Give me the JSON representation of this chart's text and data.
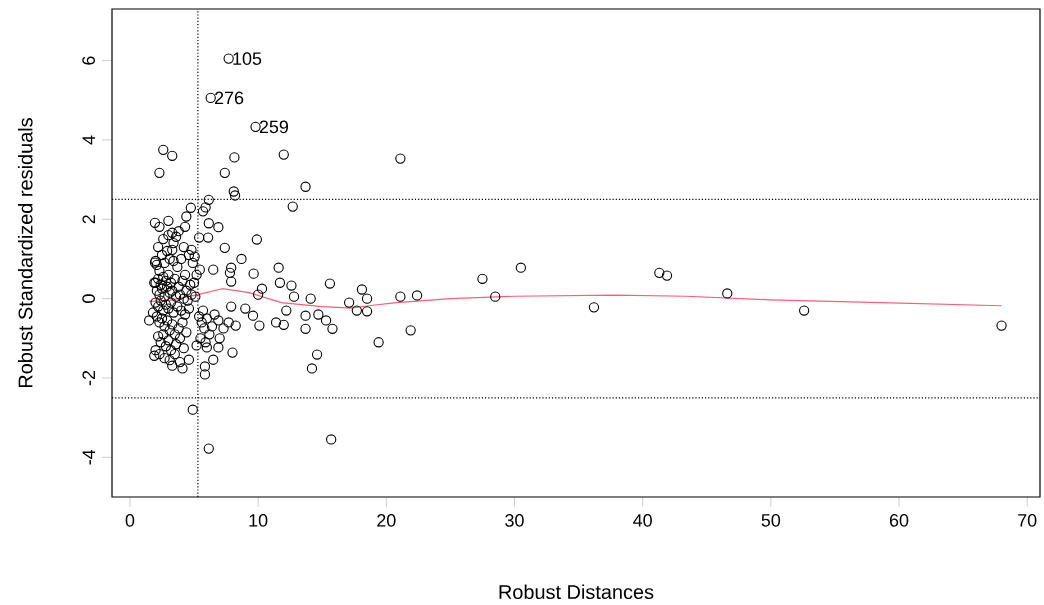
{
  "chart_data": {
    "type": "scatter",
    "xlabel": "Robust Distances",
    "ylabel": "Robust Standardized residuals",
    "xlim": [
      -1.4,
      71.0
    ],
    "ylim": [
      -5.0,
      7.3
    ],
    "xticks": [
      0,
      10,
      20,
      30,
      40,
      50,
      60,
      70
    ],
    "yticks": [
      -4,
      -2,
      0,
      2,
      4,
      6
    ],
    "grid": false,
    "legend": false,
    "series": [
      {
        "color": "#000000",
        "marker": "circle",
        "x": [
          7.7,
          6.3,
          9.8,
          2.6,
          3.3,
          2.3,
          8.15,
          7.4,
          12.0,
          13.7,
          8.1,
          8.2,
          12.7,
          21.1,
          4.75,
          6.15,
          5.9,
          5.7,
          9.9,
          6.15,
          6.9,
          7.4,
          8.7,
          9.65,
          11.6,
          11.7,
          12.6,
          12.8,
          14.1,
          15.6,
          10.3,
          10.0,
          7.9,
          7.8,
          7.9,
          7.9,
          9.0,
          9.6,
          10.1,
          11.4,
          12.0,
          12.2,
          13.7,
          13.7,
          14.7,
          15.3,
          15.8,
          14.6,
          14.2,
          17.1,
          17.7,
          18.1,
          18.5,
          18.5,
          19.4,
          15.7,
          4.9,
          6.15,
          21.1,
          21.9,
          22.4,
          27.5,
          28.5,
          30.5,
          36.2,
          41.3,
          41.9,
          46.6,
          52.6,
          68.0,
          1.5,
          3.3,
          4.1,
          4.6,
          1.9,
          5.85,
          5.85,
          6.5,
          6.9,
          8.0,
          6.0,
          5.2,
          7.7,
          8.25,
          1.95,
          2.3,
          3.0,
          3.3,
          3.6,
          4.3,
          4.4,
          5.4,
          6.1,
          1.95,
          1.9,
          3.3,
          5.05,
          4.8,
          5.45,
          6.5,
          2.0,
          2.1,
          2.3,
          2.5,
          2.7,
          2.9,
          3.1,
          3.4,
          3.7,
          4.0,
          4.3,
          4.6,
          4.9,
          5.2,
          2.2,
          2.4,
          2.6,
          2.8,
          3.0,
          3.2,
          3.5,
          3.8,
          4.1,
          4.4,
          4.7,
          5.0,
          2.1,
          2.3,
          2.5,
          2.7,
          2.9,
          3.1,
          3.3,
          3.6,
          3.9,
          4.2,
          4.5,
          4.8,
          5.1,
          2.0,
          2.2,
          2.4,
          2.6,
          2.8,
          3.0,
          3.2,
          3.4,
          3.7,
          4.0,
          4.3,
          4.6,
          2.1,
          2.3,
          2.5,
          2.7,
          2.9,
          3.1,
          3.3,
          3.5,
          3.8,
          4.1,
          4.4,
          2.2,
          2.4,
          2.6,
          2.8,
          3.0,
          3.2,
          3.6,
          3.9,
          4.2,
          2.0,
          2.3,
          2.7,
          3.1,
          3.5,
          3.9,
          1.8,
          2.0,
          2.2,
          2.6,
          3.0,
          3.4,
          3.8,
          4.2,
          5.4,
          5.6,
          5.8,
          6.0,
          6.2,
          5.5,
          5.9,
          6.4,
          6.6,
          5.7,
          6.9,
          7.3,
          7.0
        ],
        "values": [
          6.05,
          5.06,
          4.33,
          3.75,
          3.6,
          3.17,
          3.56,
          3.17,
          3.63,
          2.82,
          2.7,
          2.6,
          2.32,
          3.53,
          2.29,
          2.49,
          2.3,
          2.2,
          1.49,
          1.9,
          1.8,
          1.28,
          1.0,
          0.63,
          0.78,
          0.4,
          0.33,
          0.05,
          0.0,
          0.38,
          0.25,
          0.1,
          0.78,
          0.65,
          0.43,
          -0.2,
          -0.25,
          -0.43,
          -0.68,
          -0.6,
          -0.66,
          -0.3,
          -0.43,
          -0.76,
          -0.4,
          -0.55,
          -0.76,
          -1.41,
          -1.76,
          -0.1,
          -0.3,
          0.23,
          0.0,
          -0.32,
          -1.1,
          -3.55,
          -2.8,
          -3.78,
          0.05,
          -0.8,
          0.08,
          0.5,
          0.05,
          0.78,
          -0.22,
          0.65,
          0.58,
          0.13,
          -0.3,
          -0.68,
          -0.55,
          -1.69,
          -1.76,
          -1.54,
          -1.44,
          -1.91,
          -1.71,
          -1.54,
          -1.23,
          -1.36,
          -1.23,
          -1.18,
          -0.6,
          -0.68,
          1.91,
          1.81,
          1.96,
          1.66,
          1.56,
          1.81,
          2.07,
          1.54,
          1.54,
          0.91,
          0.4,
          1.23,
          1.06,
          1.23,
          0.73,
          0.73,
          0.95,
          0.85,
          0.7,
          1.1,
          0.9,
          1.2,
          1.0,
          0.95,
          0.8,
          1.0,
          0.6,
          1.1,
          0.9,
          0.6,
          0.5,
          0.35,
          0.55,
          0.45,
          0.6,
          0.4,
          0.5,
          0.3,
          0.45,
          0.2,
          0.35,
          0.4,
          0.2,
          0.1,
          0.25,
          0.05,
          0.3,
          0.15,
          0.2,
          0.05,
          0.1,
          0.0,
          -0.05,
          0.1,
          0.05,
          -0.1,
          -0.2,
          -0.05,
          -0.3,
          -0.15,
          -0.25,
          -0.1,
          -0.35,
          -0.2,
          -0.3,
          -0.4,
          -0.25,
          -0.45,
          -0.6,
          -0.5,
          -0.7,
          -0.55,
          -0.8,
          -0.65,
          -0.9,
          -0.75,
          -0.6,
          -0.85,
          -0.95,
          -1.1,
          -0.9,
          -1.2,
          -1.05,
          -1.3,
          -1.15,
          -1.0,
          -1.25,
          -1.3,
          -1.4,
          -1.5,
          -1.55,
          -1.4,
          -1.6,
          -0.35,
          0.4,
          1.3,
          1.5,
          1.6,
          1.4,
          1.7,
          1.3,
          -0.45,
          -0.6,
          -0.75,
          -0.5,
          -0.9,
          -1.0,
          -1.1,
          -0.7,
          -0.4,
          -0.3,
          -0.55,
          -0.75,
          -1.0
        ]
      },
      {
        "type": "line",
        "color": "#ff5c7a",
        "x": [
          1.5,
          3.0,
          5.3,
          7.2,
          9.3,
          11.8,
          15.0,
          17.3,
          18.6,
          20.8,
          25.0,
          30.0,
          37.8,
          43.4,
          50.0,
          58.6,
          68.0
        ],
        "values": [
          -0.07,
          -0.05,
          0.1,
          0.25,
          0.15,
          -0.1,
          -0.2,
          -0.24,
          -0.18,
          -0.1,
          0.0,
          0.06,
          0.09,
          0.06,
          -0.03,
          -0.1,
          -0.18
        ]
      }
    ],
    "ref_lines": [
      {
        "axis": "x",
        "value": 5.3,
        "line_style": "dotted"
      },
      {
        "axis": "y",
        "value": 2.5,
        "line_style": "dotted"
      },
      {
        "axis": "y",
        "value": -2.5,
        "line_style": "dotted"
      }
    ],
    "annotations": [
      {
        "text": "105",
        "x": 7.7,
        "y": 6.05
      },
      {
        "text": "276",
        "x": 6.3,
        "y": 5.06
      },
      {
        "text": "259",
        "x": 9.8,
        "y": 4.33
      }
    ]
  }
}
